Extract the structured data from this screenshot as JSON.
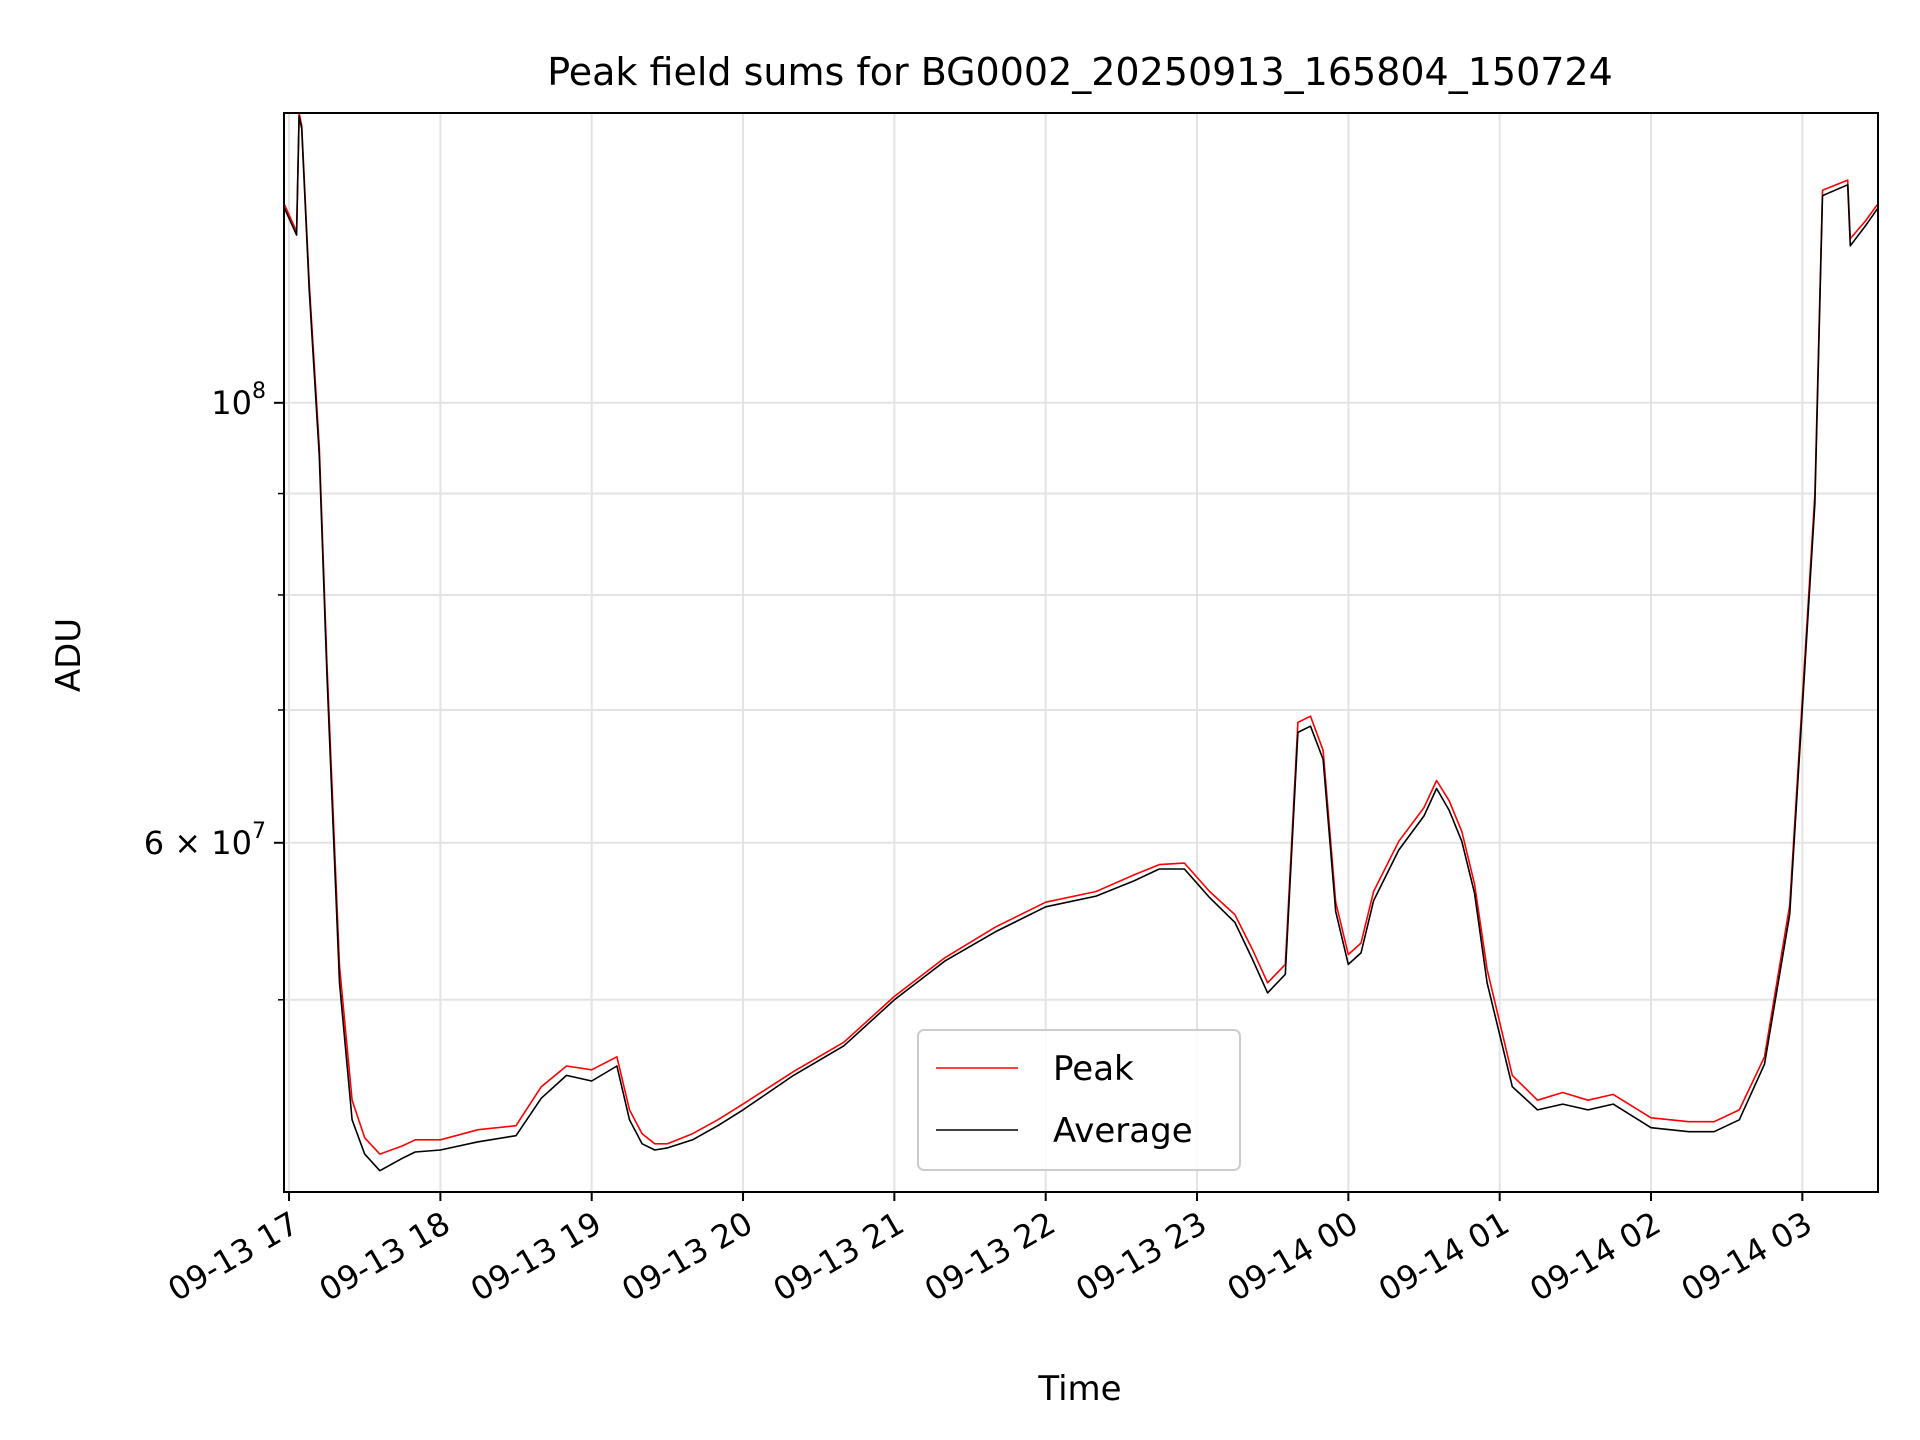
{
  "chart_data": {
    "type": "line",
    "title": "Peak field sums for BG0002_20250913_165804_150724",
    "xlabel": "Time",
    "ylabel": "ADU",
    "yscale": "log",
    "grid": true,
    "legend_position": "lower center",
    "xlim": [
      "2025-09-13T16:58:00",
      "2025-09-14T03:30:00"
    ],
    "ylim": [
      40000000,
      140000000
    ],
    "x_ticks": [
      {
        "value": "2025-09-13T17:00",
        "label": "09-13 17"
      },
      {
        "value": "2025-09-13T18:00",
        "label": "09-13 18"
      },
      {
        "value": "2025-09-13T19:00",
        "label": "09-13 19"
      },
      {
        "value": "2025-09-13T20:00",
        "label": "09-13 20"
      },
      {
        "value": "2025-09-13T21:00",
        "label": "09-13 21"
      },
      {
        "value": "2025-09-13T22:00",
        "label": "09-13 22"
      },
      {
        "value": "2025-09-13T23:00",
        "label": "09-13 23"
      },
      {
        "value": "2025-09-14T00:00",
        "label": "09-14 00"
      },
      {
        "value": "2025-09-14T01:00",
        "label": "09-14 01"
      },
      {
        "value": "2025-09-14T02:00",
        "label": "09-14 02"
      },
      {
        "value": "2025-09-14T03:00",
        "label": "09-14 03"
      }
    ],
    "y_major_ticks": [
      {
        "value": 100000000,
        "label_base": "10",
        "label_exp": "8"
      },
      {
        "value": 60000000,
        "label_base": "6 × 10",
        "label_exp": "7"
      }
    ],
    "y_minor_ticks": [
      50000000,
      70000000,
      80000000,
      90000000
    ],
    "x": [
      "2025-09-13T16:58",
      "2025-09-13T17:03",
      "2025-09-13T17:04",
      "2025-09-13T17:05",
      "2025-09-13T17:08",
      "2025-09-13T17:12",
      "2025-09-13T17:15",
      "2025-09-13T17:20",
      "2025-09-13T17:25",
      "2025-09-13T17:30",
      "2025-09-13T17:36",
      "2025-09-13T17:45",
      "2025-09-13T17:50",
      "2025-09-13T18:00",
      "2025-09-13T18:15",
      "2025-09-13T18:30",
      "2025-09-13T18:40",
      "2025-09-13T18:50",
      "2025-09-13T19:00",
      "2025-09-13T19:10",
      "2025-09-13T19:15",
      "2025-09-13T19:20",
      "2025-09-13T19:25",
      "2025-09-13T19:30",
      "2025-09-13T19:40",
      "2025-09-13T19:50",
      "2025-09-13T20:00",
      "2025-09-13T20:20",
      "2025-09-13T20:40",
      "2025-09-13T21:00",
      "2025-09-13T21:20",
      "2025-09-13T21:40",
      "2025-09-13T22:00",
      "2025-09-13T22:20",
      "2025-09-13T22:35",
      "2025-09-13T22:45",
      "2025-09-13T22:55",
      "2025-09-13T23:05",
      "2025-09-13T23:15",
      "2025-09-13T23:22",
      "2025-09-13T23:28",
      "2025-09-13T23:35",
      "2025-09-13T23:40",
      "2025-09-13T23:45",
      "2025-09-13T23:50",
      "2025-09-13T23:55",
      "2025-09-14T00:00",
      "2025-09-14T00:05",
      "2025-09-14T00:10",
      "2025-09-14T00:20",
      "2025-09-14T00:30",
      "2025-09-14T00:35",
      "2025-09-14T00:40",
      "2025-09-14T00:45",
      "2025-09-14T00:50",
      "2025-09-14T00:55",
      "2025-09-14T01:05",
      "2025-09-14T01:15",
      "2025-09-14T01:25",
      "2025-09-14T01:35",
      "2025-09-14T01:45",
      "2025-09-14T02:00",
      "2025-09-14T02:15",
      "2025-09-14T02:25",
      "2025-09-14T02:35",
      "2025-09-14T02:45",
      "2025-09-14T02:55",
      "2025-09-14T03:05",
      "2025-09-14T03:08",
      "2025-09-14T03:18",
      "2025-09-14T03:19",
      "2025-09-14T03:25",
      "2025-09-14T03:30"
    ],
    "series": [
      {
        "name": "Peak",
        "color": "#ff0000",
        "values": [
          126000000,
          122000000,
          140000000,
          138000000,
          115000000,
          95000000,
          74000000,
          52000000,
          44500000,
          42600000,
          41800000,
          42200000,
          42500000,
          42500000,
          43000000,
          43200000,
          45200000,
          46300000,
          46100000,
          46800000,
          44000000,
          42800000,
          42300000,
          42300000,
          42800000,
          43500000,
          44300000,
          46000000,
          47600000,
          50200000,
          52500000,
          54400000,
          56000000,
          56700000,
          57800000,
          58500000,
          58600000,
          56700000,
          55200000,
          53000000,
          51000000,
          52100000,
          69000000,
          69500000,
          66800000,
          56000000,
          52700000,
          53400000,
          56700000,
          60100000,
          62500000,
          64500000,
          63000000,
          60800000,
          57200000,
          51800000,
          45800000,
          44500000,
          44900000,
          44500000,
          44800000,
          43600000,
          43400000,
          43400000,
          44000000,
          46800000,
          55800000,
          90000000,
          128000000,
          129500000,
          121000000,
          123500000,
          126000000
        ]
      },
      {
        "name": "Average",
        "color": "#000000",
        "values": [
          125500000,
          121500000,
          139500000,
          137500000,
          114000000,
          94000000,
          73000000,
          51000000,
          43500000,
          41800000,
          41000000,
          41600000,
          41900000,
          42000000,
          42400000,
          42700000,
          44600000,
          45800000,
          45500000,
          46300000,
          43500000,
          42300000,
          42000000,
          42100000,
          42500000,
          43200000,
          44000000,
          45800000,
          47400000,
          50000000,
          52300000,
          54100000,
          55700000,
          56400000,
          57400000,
          58200000,
          58200000,
          56300000,
          54700000,
          52400000,
          50400000,
          51500000,
          68200000,
          68700000,
          66100000,
          55400000,
          52100000,
          52800000,
          56100000,
          59500000,
          61900000,
          63900000,
          62300000,
          60100000,
          56600000,
          51000000,
          45200000,
          44000000,
          44300000,
          44000000,
          44300000,
          43100000,
          42900000,
          42900000,
          43500000,
          46400000,
          55200000,
          89000000,
          127200000,
          128800000,
          120000000,
          122800000,
          125400000
        ]
      }
    ]
  }
}
